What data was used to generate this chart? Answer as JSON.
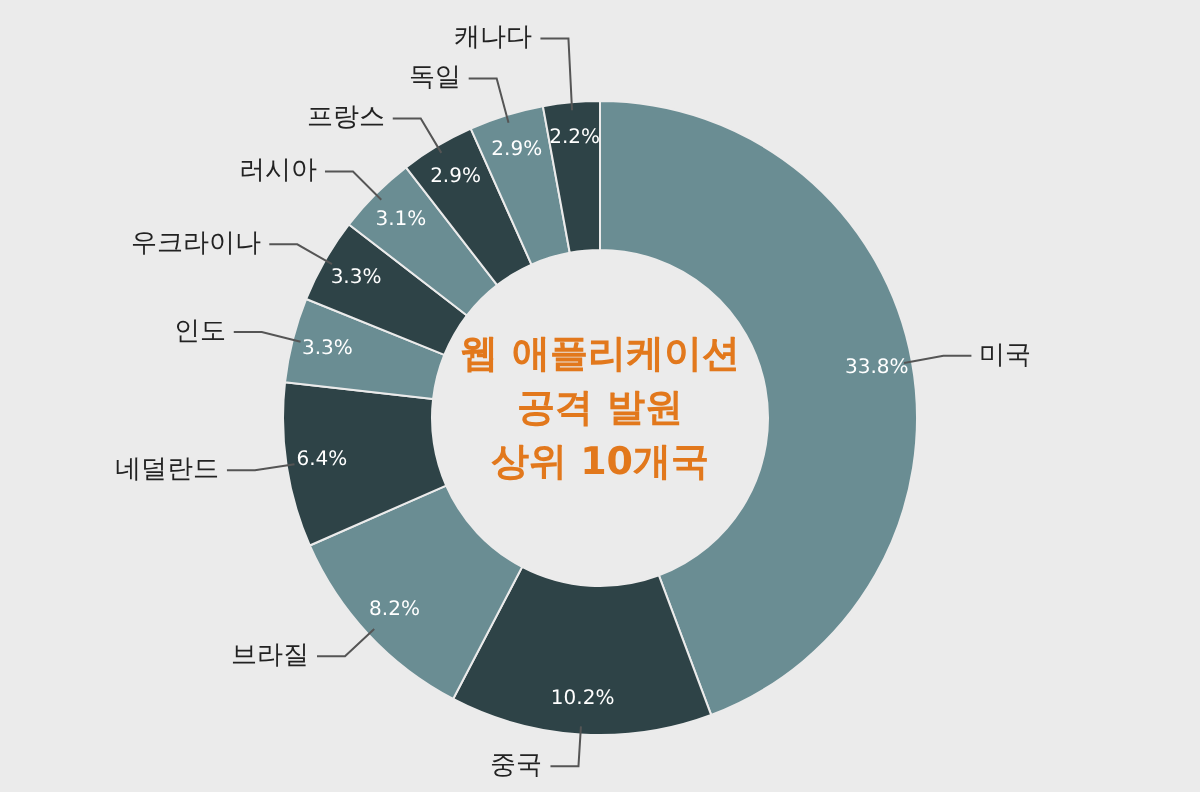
{
  "chart_data": {
    "type": "donut",
    "title": "웹 애플리케이션\n공격 발원\n상위 10개국",
    "categories": [
      "미국",
      "중국",
      "브라질",
      "네덜란드",
      "인도",
      "우크라이나",
      "러시아",
      "프랑스",
      "독일",
      "캐나다"
    ],
    "values": [
      33.8,
      10.2,
      8.2,
      6.4,
      3.3,
      3.3,
      3.1,
      2.9,
      2.9,
      2.2
    ],
    "colors": [
      "#6a8d93",
      "#2e4347",
      "#6a8d93",
      "#2e4347",
      "#6a8d93",
      "#2e4347",
      "#6a8d93",
      "#2e4347",
      "#6a8d93",
      "#2e4347"
    ],
    "value_labels": [
      "33.8%",
      "10.2%",
      "8.2%",
      "6.4%",
      "3.3%",
      "3.3%",
      "3.1%",
      "2.9%",
      "2.9%",
      "2.2%"
    ],
    "legend": false
  }
}
